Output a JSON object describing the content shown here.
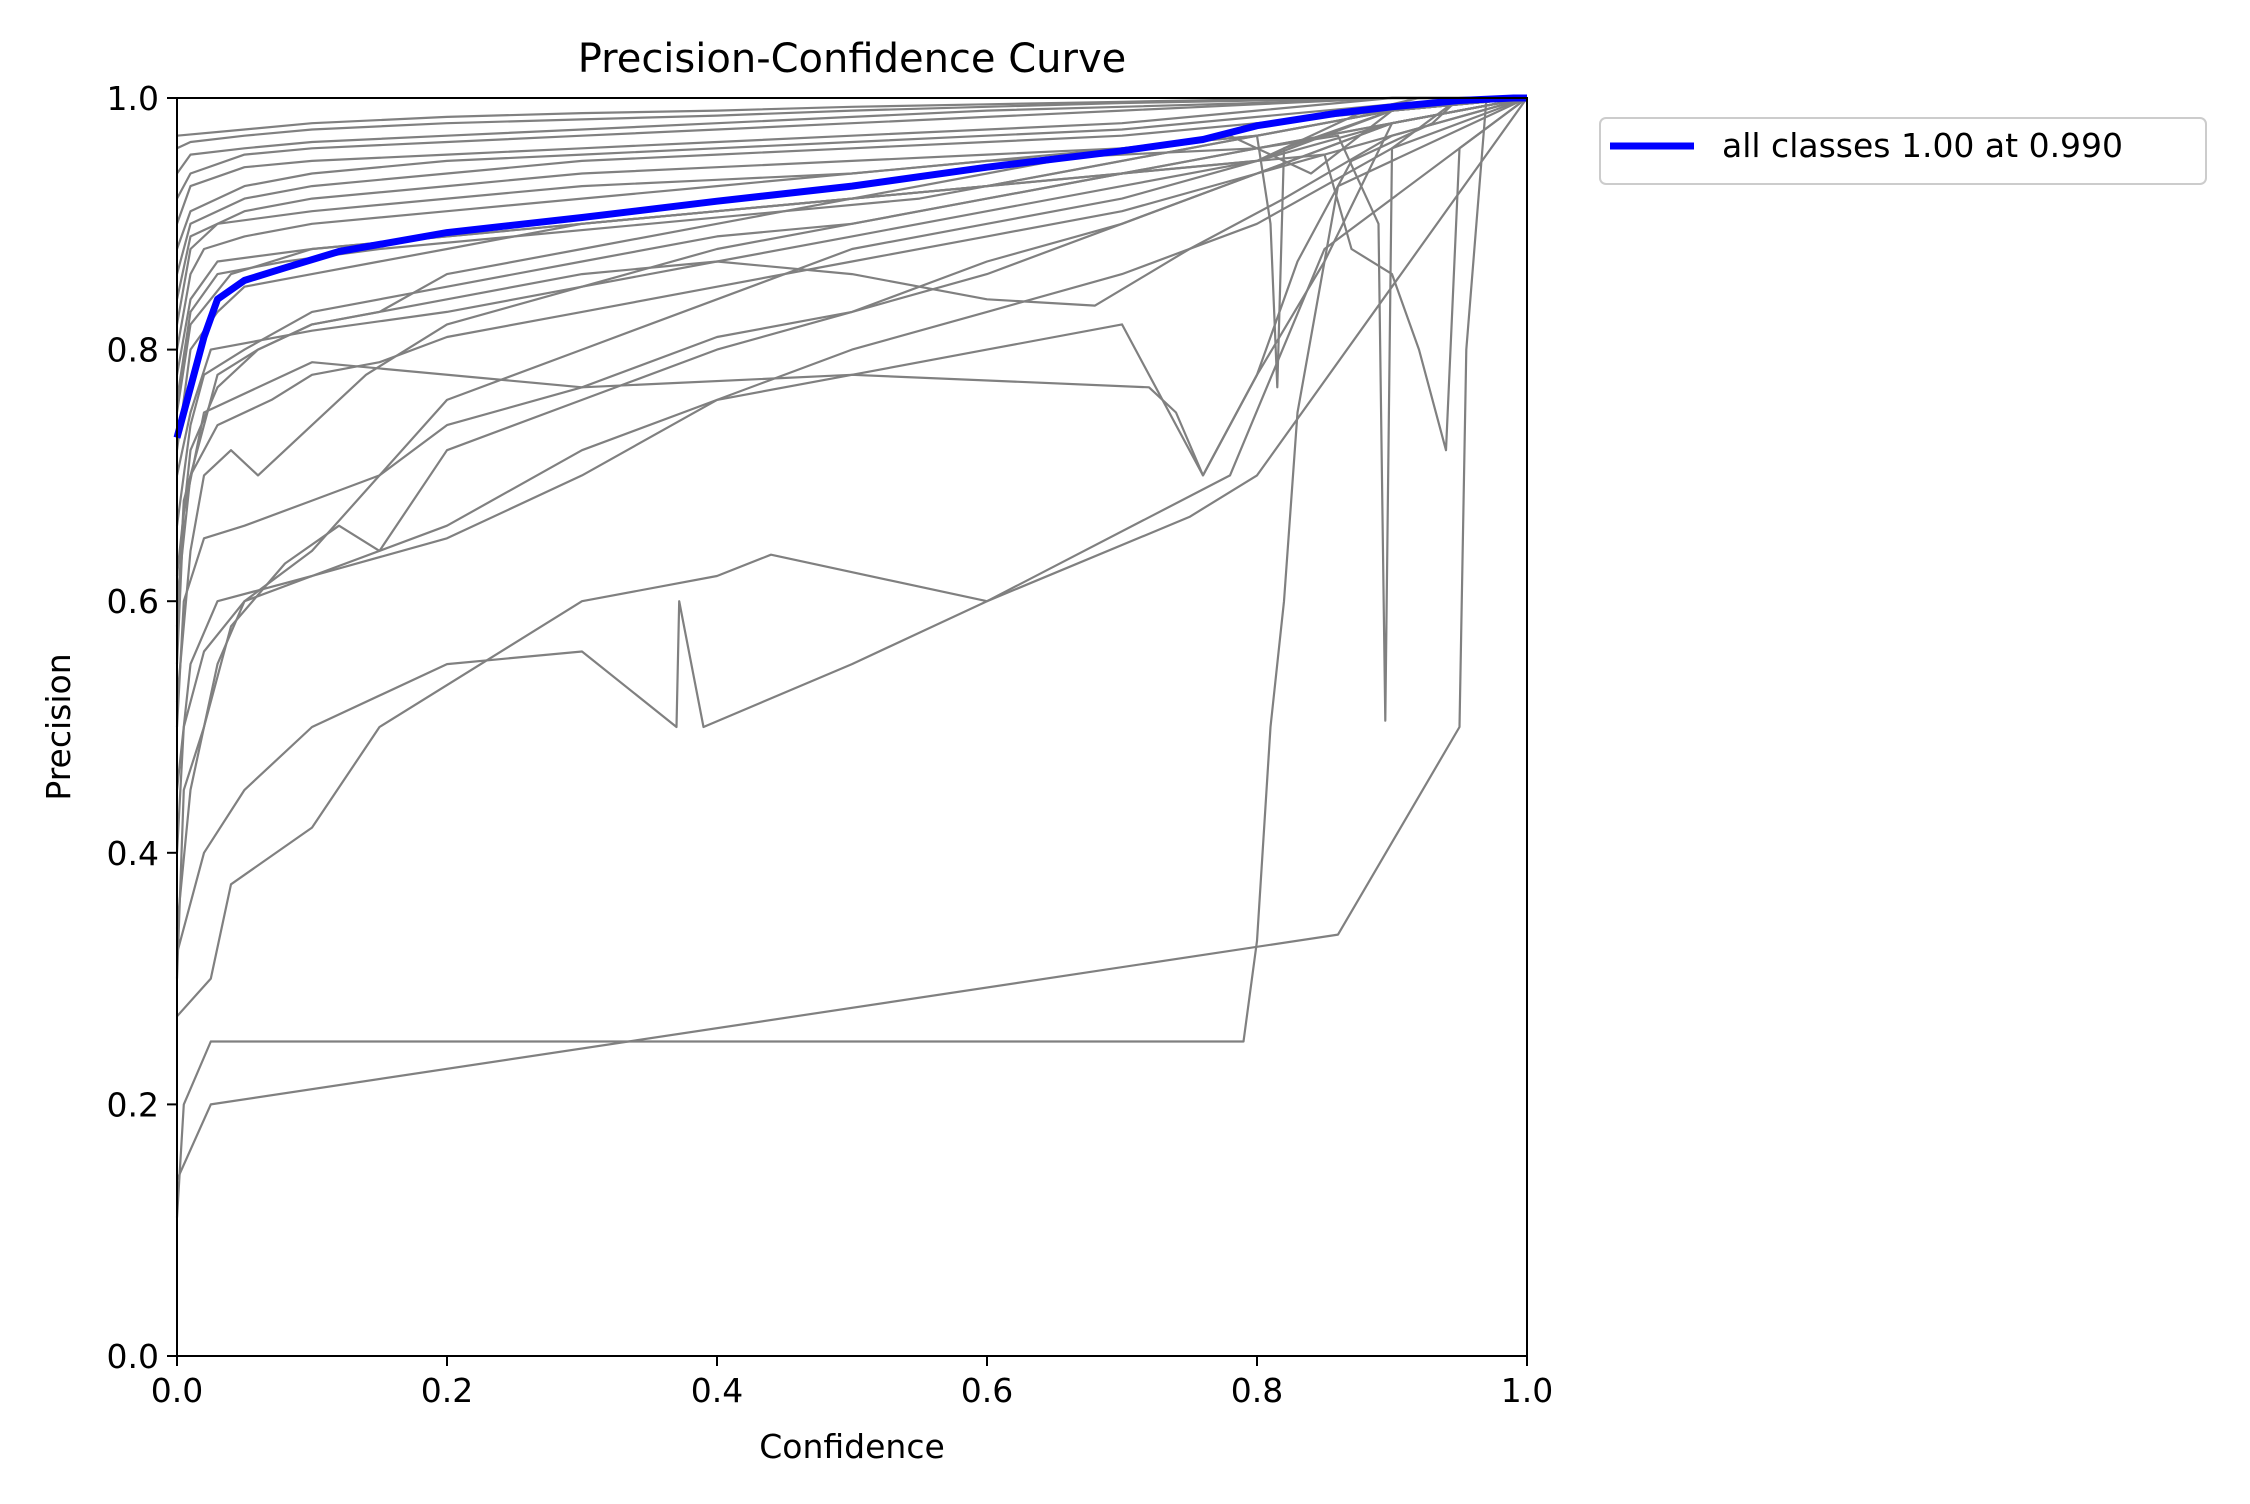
{
  "chart_data": {
    "type": "line",
    "title": "Precision-Confidence Curve",
    "xlabel": "Confidence",
    "ylabel": "Precision",
    "xlim": [
      0,
      1
    ],
    "ylim": [
      0,
      1
    ],
    "xticks": [
      "0.0",
      "0.2",
      "0.4",
      "0.6",
      "0.8",
      "1.0"
    ],
    "yticks": [
      "0.0",
      "0.2",
      "0.4",
      "0.6",
      "0.8",
      "1.0"
    ],
    "grid": false,
    "legend_position": "outside-top-right",
    "colors": {
      "class_lines": "#808080",
      "summary_line": "#0000ff"
    },
    "summary_series": {
      "name": "all classes 1.00 at 0.990",
      "x": [
        0.0,
        0.01,
        0.02,
        0.03,
        0.05,
        0.08,
        0.12,
        0.2,
        0.3,
        0.4,
        0.5,
        0.6,
        0.7,
        0.76,
        0.8,
        0.86,
        0.9,
        0.95,
        0.99,
        1.0
      ],
      "y": [
        0.73,
        0.77,
        0.81,
        0.84,
        0.855,
        0.865,
        0.878,
        0.893,
        0.905,
        0.918,
        0.93,
        0.945,
        0.958,
        0.967,
        0.978,
        0.988,
        0.993,
        0.998,
        1.0,
        1.0
      ]
    },
    "class_series": [
      {
        "x": [
          0.0,
          0.005,
          0.025,
          0.79,
          0.8,
          0.81,
          0.82,
          0.83,
          0.85,
          0.86,
          1.0
        ],
        "y": [
          0.11,
          0.2,
          0.25,
          0.25,
          0.33,
          0.5,
          0.6,
          0.75,
          0.87,
          0.93,
          1.0
        ]
      },
      {
        "x": [
          0.0,
          0.025,
          0.86,
          0.95,
          0.955,
          0.97,
          1.0
        ],
        "y": [
          0.14,
          0.2,
          0.335,
          0.5,
          0.8,
          1.0,
          1.0
        ]
      },
      {
        "x": [
          0.0,
          0.025,
          0.04,
          0.1,
          0.15,
          0.3,
          0.4,
          0.44,
          0.6,
          0.75,
          0.8,
          1.0
        ],
        "y": [
          0.27,
          0.3,
          0.375,
          0.42,
          0.5,
          0.6,
          0.62,
          0.637,
          0.6,
          0.667,
          0.7,
          1.0
        ]
      },
      {
        "x": [
          0.0,
          0.02,
          0.05,
          0.1,
          0.2,
          0.3,
          0.37,
          0.372,
          0.39,
          0.5,
          0.6,
          0.78,
          0.85,
          1.0
        ],
        "y": [
          0.32,
          0.4,
          0.45,
          0.5,
          0.55,
          0.56,
          0.5,
          0.6,
          0.5,
          0.55,
          0.6,
          0.7,
          0.88,
          1.0
        ]
      },
      {
        "x": [
          0.0,
          0.01,
          0.03,
          0.05,
          0.1,
          0.2,
          0.3,
          0.4,
          0.5,
          0.6,
          0.7,
          0.76,
          0.8,
          0.85,
          0.9,
          1.0
        ],
        "y": [
          0.34,
          0.45,
          0.55,
          0.6,
          0.62,
          0.65,
          0.7,
          0.76,
          0.78,
          0.8,
          0.82,
          0.7,
          0.78,
          0.87,
          0.98,
          1.0
        ]
      },
      {
        "x": [
          0.0,
          0.01,
          0.03,
          0.1,
          0.2,
          0.3,
          0.4,
          0.5,
          0.6,
          0.7,
          0.8,
          0.85,
          0.9,
          1.0
        ],
        "y": [
          0.45,
          0.55,
          0.6,
          0.62,
          0.66,
          0.72,
          0.76,
          0.8,
          0.83,
          0.86,
          0.9,
          0.93,
          0.96,
          1.0
        ]
      },
      {
        "x": [
          0.0,
          0.005,
          0.02,
          0.05,
          0.1,
          0.15,
          0.2,
          0.3,
          0.4,
          0.5,
          0.6,
          0.7,
          0.8,
          0.9,
          1.0
        ],
        "y": [
          0.5,
          0.6,
          0.65,
          0.66,
          0.68,
          0.7,
          0.74,
          0.77,
          0.81,
          0.83,
          0.86,
          0.9,
          0.94,
          0.98,
          1.0
        ]
      },
      {
        "x": [
          0.0,
          0.005,
          0.02,
          0.1,
          0.3,
          0.5,
          0.72,
          0.74,
          0.76,
          0.8,
          0.83,
          0.87,
          0.93,
          0.95,
          1.0
        ],
        "y": [
          0.55,
          0.67,
          0.75,
          0.79,
          0.77,
          0.78,
          0.77,
          0.75,
          0.7,
          0.78,
          0.87,
          0.95,
          0.98,
          1.0,
          1.0
        ]
      },
      {
        "x": [
          0.0,
          0.01,
          0.03,
          0.07,
          0.1,
          0.15,
          0.2,
          0.3,
          0.4,
          0.5,
          0.6,
          0.7,
          0.8,
          0.9,
          1.0
        ],
        "y": [
          0.6,
          0.7,
          0.74,
          0.76,
          0.78,
          0.79,
          0.81,
          0.83,
          0.85,
          0.87,
          0.89,
          0.91,
          0.94,
          0.97,
          1.0
        ]
      },
      {
        "x": [
          0.0,
          0.01,
          0.03,
          0.06,
          0.1,
          0.2,
          0.3,
          0.4,
          0.5,
          0.6,
          0.68,
          0.75,
          0.82,
          0.9,
          1.0
        ],
        "y": [
          0.62,
          0.72,
          0.77,
          0.8,
          0.82,
          0.84,
          0.86,
          0.87,
          0.86,
          0.84,
          0.835,
          0.88,
          0.92,
          0.97,
          1.0
        ]
      },
      {
        "x": [
          0.0,
          0.01,
          0.025,
          0.1,
          0.2,
          0.3,
          0.4,
          0.5,
          0.6,
          0.7,
          0.8,
          0.85,
          0.9,
          1.0
        ],
        "y": [
          0.7,
          0.75,
          0.8,
          0.815,
          0.83,
          0.85,
          0.87,
          0.89,
          0.91,
          0.93,
          0.95,
          0.97,
          0.99,
          1.0
        ]
      },
      {
        "x": [
          0.0,
          0.01,
          0.03,
          0.05,
          0.1,
          0.15,
          0.2,
          0.3,
          0.4,
          0.5,
          0.6,
          0.7,
          0.8,
          0.9,
          1.0
        ],
        "y": [
          0.72,
          0.8,
          0.83,
          0.85,
          0.86,
          0.87,
          0.88,
          0.9,
          0.91,
          0.92,
          0.93,
          0.95,
          0.97,
          0.99,
          1.0
        ]
      },
      {
        "x": [
          0.0,
          0.01,
          0.04,
          0.1,
          0.2,
          0.3,
          0.4,
          0.5,
          0.6,
          0.7,
          0.8,
          0.84,
          0.88,
          0.92,
          1.0
        ],
        "y": [
          0.75,
          0.82,
          0.86,
          0.88,
          0.89,
          0.9,
          0.91,
          0.92,
          0.93,
          0.94,
          0.95,
          0.97,
          0.99,
          1.0,
          1.0
        ]
      },
      {
        "x": [
          0.0,
          0.01,
          0.03,
          0.1,
          0.2,
          0.3,
          0.4,
          0.5,
          0.6,
          0.7,
          0.8,
          0.85,
          0.87,
          0.9,
          0.92,
          0.94,
          0.95,
          1.0
        ],
        "y": [
          0.78,
          0.84,
          0.87,
          0.88,
          0.89,
          0.9,
          0.91,
          0.92,
          0.93,
          0.94,
          0.95,
          0.955,
          0.88,
          0.86,
          0.8,
          0.72,
          0.96,
          1.0
        ]
      },
      {
        "x": [
          0.0,
          0.01,
          0.02,
          0.05,
          0.1,
          0.2,
          0.3,
          0.4,
          0.5,
          0.6,
          0.7,
          0.8,
          0.81,
          0.815,
          0.82,
          0.9,
          1.0
        ],
        "y": [
          0.8,
          0.86,
          0.88,
          0.89,
          0.9,
          0.91,
          0.92,
          0.93,
          0.94,
          0.95,
          0.96,
          0.97,
          0.9,
          0.77,
          0.96,
          0.99,
          1.0
        ]
      },
      {
        "x": [
          0.0,
          0.01,
          0.03,
          0.1,
          0.2,
          0.3,
          0.4,
          0.5,
          0.6,
          0.7,
          0.8,
          0.86,
          0.89,
          0.895,
          0.9,
          0.95,
          1.0
        ],
        "y": [
          0.82,
          0.88,
          0.9,
          0.91,
          0.92,
          0.93,
          0.935,
          0.94,
          0.95,
          0.955,
          0.96,
          0.97,
          0.9,
          0.505,
          0.96,
          1.0,
          1.0
        ]
      },
      {
        "x": [
          0.0,
          0.01,
          0.05,
          0.1,
          0.2,
          0.3,
          0.4,
          0.5,
          0.6,
          0.7,
          0.78,
          0.84,
          0.9,
          1.0
        ],
        "y": [
          0.84,
          0.89,
          0.91,
          0.92,
          0.93,
          0.94,
          0.945,
          0.95,
          0.955,
          0.96,
          0.97,
          0.94,
          0.99,
          1.0
        ]
      },
      {
        "x": [
          0.0,
          0.01,
          0.05,
          0.1,
          0.2,
          0.3,
          0.4,
          0.5,
          0.6,
          0.7,
          0.8,
          0.9,
          1.0
        ],
        "y": [
          0.86,
          0.9,
          0.92,
          0.93,
          0.94,
          0.95,
          0.955,
          0.96,
          0.965,
          0.97,
          0.98,
          0.99,
          1.0
        ]
      },
      {
        "x": [
          0.0,
          0.01,
          0.05,
          0.1,
          0.2,
          0.3,
          0.4,
          0.5,
          0.6,
          0.7,
          0.8,
          0.9,
          1.0
        ],
        "y": [
          0.88,
          0.91,
          0.93,
          0.94,
          0.95,
          0.955,
          0.96,
          0.965,
          0.97,
          0.975,
          0.985,
          0.995,
          1.0
        ]
      },
      {
        "x": [
          0.0,
          0.01,
          0.05,
          0.1,
          0.2,
          0.3,
          0.4,
          0.5,
          0.6,
          0.7,
          0.8,
          0.9,
          1.0
        ],
        "y": [
          0.9,
          0.93,
          0.945,
          0.95,
          0.955,
          0.96,
          0.965,
          0.97,
          0.975,
          0.98,
          0.99,
          1.0,
          1.0
        ]
      },
      {
        "x": [
          0.0,
          0.01,
          0.05,
          0.1,
          0.2,
          0.3,
          0.4,
          0.5,
          0.6,
          0.7,
          0.8,
          0.9,
          1.0
        ],
        "y": [
          0.92,
          0.94,
          0.955,
          0.96,
          0.965,
          0.97,
          0.975,
          0.98,
          0.985,
          0.99,
          0.995,
          1.0,
          1.0
        ]
      },
      {
        "x": [
          0.0,
          0.01,
          0.05,
          0.1,
          0.2,
          0.3,
          0.4,
          0.5,
          0.6,
          0.7,
          0.8,
          0.9,
          1.0
        ],
        "y": [
          0.94,
          0.955,
          0.96,
          0.965,
          0.97,
          0.975,
          0.98,
          0.985,
          0.99,
          0.993,
          0.996,
          1.0,
          1.0
        ]
      },
      {
        "x": [
          0.0,
          0.01,
          0.05,
          0.1,
          0.2,
          0.3,
          0.4,
          0.5,
          0.6,
          0.7,
          0.8,
          0.9,
          1.0
        ],
        "y": [
          0.96,
          0.965,
          0.97,
          0.975,
          0.98,
          0.983,
          0.986,
          0.99,
          0.993,
          0.996,
          0.998,
          1.0,
          1.0
        ]
      },
      {
        "x": [
          0.0,
          0.05,
          0.1,
          0.2,
          0.3,
          0.4,
          0.5,
          0.6,
          0.7,
          0.8,
          0.9,
          1.0
        ],
        "y": [
          0.97,
          0.975,
          0.98,
          0.985,
          0.988,
          0.99,
          0.993,
          0.995,
          0.997,
          0.999,
          1.0,
          1.0
        ]
      },
      {
        "x": [
          0.0,
          0.005,
          0.02,
          0.05,
          0.1,
          0.15,
          0.2,
          0.3,
          0.4,
          0.5,
          0.6,
          0.7,
          0.8,
          0.9,
          1.0
        ],
        "y": [
          0.4,
          0.5,
          0.56,
          0.6,
          0.64,
          0.7,
          0.76,
          0.8,
          0.84,
          0.88,
          0.9,
          0.92,
          0.95,
          0.98,
          1.0
        ]
      },
      {
        "x": [
          0.0,
          0.005,
          0.02,
          0.04,
          0.08,
          0.12,
          0.15,
          0.2,
          0.3,
          0.4,
          0.5,
          0.6,
          0.7,
          0.8,
          0.9,
          1.0
        ],
        "y": [
          0.3,
          0.45,
          0.5,
          0.58,
          0.63,
          0.66,
          0.64,
          0.72,
          0.76,
          0.8,
          0.83,
          0.87,
          0.9,
          0.94,
          0.98,
          1.0
        ]
      },
      {
        "x": [
          0.0,
          0.01,
          0.02,
          0.04,
          0.06,
          0.1,
          0.14,
          0.2,
          0.3,
          0.4,
          0.5,
          0.6,
          0.7,
          0.8,
          0.9,
          1.0
        ],
        "y": [
          0.52,
          0.64,
          0.7,
          0.72,
          0.7,
          0.74,
          0.78,
          0.82,
          0.85,
          0.88,
          0.9,
          0.92,
          0.94,
          0.96,
          0.98,
          1.0
        ]
      },
      {
        "x": [
          0.0,
          0.005,
          0.015,
          0.03,
          0.06,
          0.1,
          0.15,
          0.2,
          0.3,
          0.4,
          0.5,
          0.6,
          0.7,
          0.8,
          0.9,
          1.0
        ],
        "y": [
          0.58,
          0.68,
          0.72,
          0.78,
          0.8,
          0.82,
          0.83,
          0.86,
          0.88,
          0.9,
          0.92,
          0.94,
          0.96,
          0.97,
          0.99,
          1.0
        ]
      },
      {
        "x": [
          0.0,
          0.01,
          0.02,
          0.05,
          0.1,
          0.2,
          0.3,
          0.4,
          0.5,
          0.6,
          0.7,
          0.8,
          0.9,
          1.0
        ],
        "y": [
          0.66,
          0.74,
          0.78,
          0.8,
          0.83,
          0.85,
          0.87,
          0.89,
          0.9,
          0.92,
          0.94,
          0.96,
          0.98,
          1.0
        ]
      },
      {
        "x": [
          0.0,
          0.01,
          0.03,
          0.08,
          0.15,
          0.25,
          0.35,
          0.45,
          0.55,
          0.65,
          0.75,
          0.85,
          0.95,
          1.0
        ],
        "y": [
          0.76,
          0.83,
          0.86,
          0.87,
          0.88,
          0.89,
          0.9,
          0.91,
          0.92,
          0.94,
          0.96,
          0.98,
          1.0,
          1.0
        ]
      }
    ]
  }
}
